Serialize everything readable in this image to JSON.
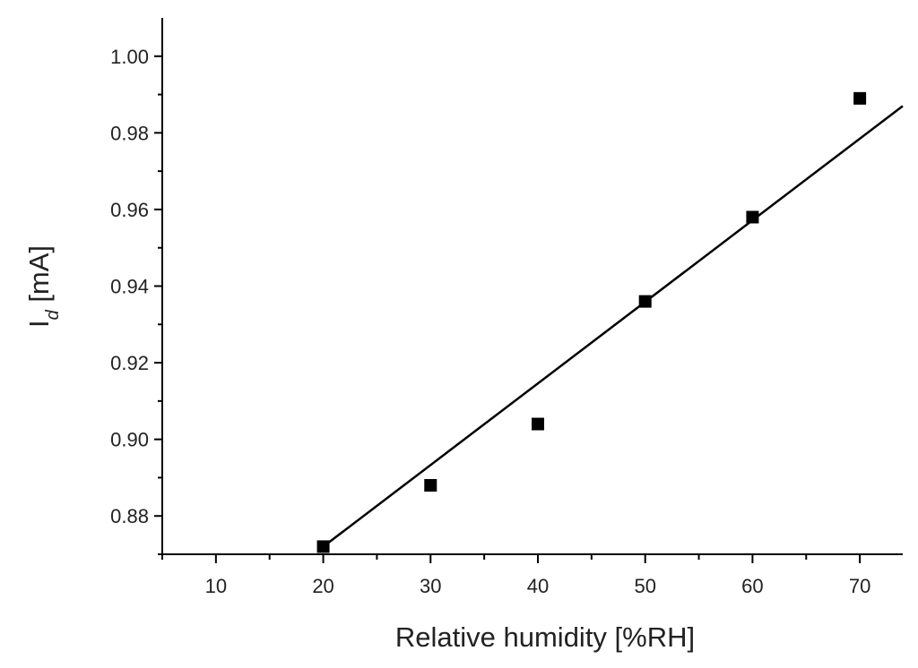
{
  "chart_data": {
    "type": "scatter",
    "xlabel": "Relative humidity [%RH]",
    "ylabel": {
      "main": "I",
      "sub": "d",
      "unit": " [mA]"
    },
    "xlim": [
      5,
      74
    ],
    "ylim": [
      0.87,
      1.01
    ],
    "xticks": [
      10,
      20,
      30,
      40,
      50,
      60,
      70
    ],
    "xtick_labels": [
      "10",
      "20",
      "30",
      "40",
      "50",
      "60",
      "70"
    ],
    "xminor": [
      5,
      15,
      25,
      35,
      45,
      55,
      65
    ],
    "yticks": [
      0.88,
      0.9,
      0.92,
      0.94,
      0.96,
      0.98,
      1.0
    ],
    "ytick_labels": [
      "0.88",
      "0.90",
      "0.92",
      "0.94",
      "0.96",
      "0.98",
      "1.00"
    ],
    "yminor": [
      0.87,
      0.89,
      0.91,
      0.93,
      0.95,
      0.97,
      0.99
    ],
    "grid": false,
    "series": [
      {
        "marker": "square",
        "color": "#000000",
        "x": [
          20,
          30,
          40,
          50,
          60,
          70
        ],
        "y": [
          0.872,
          0.888,
          0.904,
          0.936,
          0.958,
          0.989
        ]
      }
    ],
    "fit_line": {
      "color": "#000000",
      "x": [
        20,
        74
      ],
      "y": [
        0.872,
        0.987
      ]
    }
  }
}
